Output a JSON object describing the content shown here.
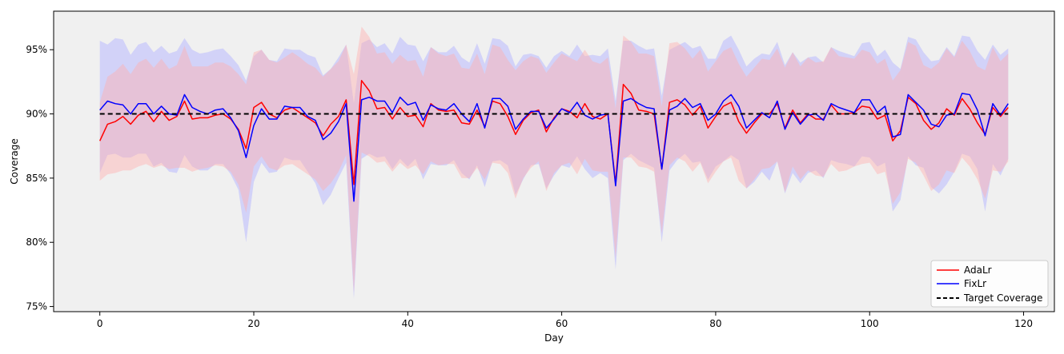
{
  "chart_data": {
    "type": "line",
    "xlabel": "Day",
    "ylabel": "Coverage",
    "xlim": [
      -6,
      124
    ],
    "ylim": [
      74.6,
      98.0
    ],
    "xticks": [
      0,
      20,
      40,
      60,
      80,
      100,
      120
    ],
    "yticks": [
      75,
      80,
      85,
      90,
      95
    ],
    "ytick_labels": [
      "75%",
      "80%",
      "85%",
      "90%",
      "95%"
    ],
    "grid": false,
    "legend_position": "bottom-right",
    "target": {
      "name": "Target Coverage",
      "value": 90,
      "color": "#000000",
      "x_range": [
        0,
        118
      ]
    },
    "series": [
      {
        "name": "AdaLr",
        "color": "#ff0000",
        "band_color": "#ffb0b0",
        "values": [
          87.9,
          89.2,
          89.4,
          89.8,
          89.2,
          89.9,
          90.2,
          89.4,
          90.2,
          89.5,
          89.8,
          91.0,
          89.6,
          89.7,
          89.7,
          89.9,
          90.0,
          89.6,
          88.8,
          87.3,
          90.5,
          90.9,
          90.0,
          89.7,
          90.3,
          90.5,
          90.1,
          89.7,
          89.3,
          88.3,
          89.2,
          89.8,
          91.1,
          84.5,
          92.6,
          91.8,
          90.4,
          90.5,
          89.6,
          90.5,
          89.8,
          89.9,
          89.0,
          90.8,
          90.3,
          90.2,
          90.3,
          89.3,
          89.2,
          90.3,
          89.0,
          91.0,
          90.8,
          89.8,
          88.4,
          89.5,
          90.1,
          90.3,
          88.6,
          89.7,
          90.4,
          90.2,
          89.7,
          90.8,
          89.8,
          89.6,
          90.0,
          84.6,
          92.3,
          91.6,
          90.3,
          90.2,
          90.0,
          85.7,
          90.9,
          91.1,
          90.7,
          89.9,
          90.6,
          88.9,
          89.8,
          90.6,
          90.9,
          89.4,
          88.5,
          89.3,
          90.0,
          90.0,
          90.8,
          88.9,
          90.3,
          89.3,
          90.0,
          89.6,
          89.6,
          90.7,
          90.0,
          90.0,
          90.1,
          90.6,
          90.5,
          89.6,
          89.9,
          87.9,
          88.7,
          91.3,
          90.8,
          89.5,
          88.8,
          89.3,
          90.4,
          89.9,
          91.2,
          90.4,
          89.3,
          88.4,
          90.5,
          89.8,
          90.5
        ],
        "lower": [
          84.8,
          85.3,
          85.4,
          85.6,
          85.6,
          85.9,
          86.1,
          85.8,
          86.0,
          85.7,
          85.8,
          85.8,
          85.5,
          85.7,
          85.8,
          86.0,
          85.9,
          85.5,
          84.5,
          82.3,
          85.9,
          86.7,
          85.8,
          85.6,
          86.0,
          86.1,
          85.7,
          85.3,
          84.9,
          84.0,
          84.6,
          85.5,
          86.8,
          76.1,
          87.0,
          86.7,
          86.2,
          86.3,
          85.5,
          86.2,
          85.7,
          86.0,
          85.3,
          86.3,
          86.0,
          86.1,
          86.1,
          85.0,
          85.0,
          85.8,
          84.9,
          86.2,
          86.1,
          85.4,
          83.4,
          85.0,
          85.8,
          86.3,
          84.0,
          85.4,
          86.0,
          86.2,
          85.3,
          86.5,
          85.6,
          85.5,
          85.5,
          78.8,
          86.6,
          86.6,
          85.9,
          85.8,
          85.5,
          80.7,
          86.0,
          86.6,
          86.3,
          85.5,
          86.2,
          84.6,
          85.5,
          86.3,
          86.6,
          84.8,
          84.2,
          84.9,
          85.7,
          85.8,
          86.3,
          83.9,
          85.9,
          84.9,
          85.6,
          85.2,
          85.1,
          86.1,
          85.5,
          85.6,
          85.9,
          86.1,
          86.2,
          85.3,
          85.5,
          83.0,
          83.9,
          86.5,
          86.2,
          85.2,
          84.0,
          84.5,
          85.6,
          85.4,
          86.6,
          85.9,
          84.9,
          83.4,
          85.6,
          85.5,
          86.3
        ],
        "upper": [
          90.9,
          92.9,
          93.3,
          93.9,
          93.1,
          94.0,
          94.3,
          93.6,
          94.3,
          93.5,
          93.8,
          95.3,
          93.7,
          93.7,
          93.7,
          94.0,
          94.0,
          93.7,
          93.1,
          92.3,
          94.8,
          95.0,
          94.2,
          94.0,
          94.4,
          94.8,
          94.4,
          93.9,
          93.6,
          92.9,
          93.5,
          94.1,
          95.4,
          93.1,
          96.8,
          96.0,
          94.7,
          94.8,
          93.9,
          94.6,
          94.1,
          94.2,
          92.9,
          95.2,
          94.7,
          94.5,
          94.7,
          93.6,
          93.5,
          94.7,
          93.1,
          95.4,
          95.2,
          94.2,
          93.4,
          94.1,
          94.5,
          94.3,
          93.2,
          94.0,
          94.7,
          94.4,
          94.1,
          95.0,
          94.1,
          93.9,
          94.4,
          90.4,
          96.1,
          95.6,
          94.7,
          94.7,
          94.5,
          90.6,
          95.5,
          95.6,
          95.1,
          94.3,
          95.0,
          93.3,
          94.1,
          94.9,
          95.2,
          93.9,
          92.9,
          93.6,
          94.3,
          94.2,
          95.1,
          93.6,
          94.8,
          93.7,
          94.4,
          94.0,
          94.1,
          95.2,
          94.5,
          94.4,
          94.3,
          95.0,
          94.8,
          93.9,
          94.3,
          92.6,
          93.4,
          95.6,
          95.3,
          93.8,
          93.5,
          94.0,
          95.1,
          94.4,
          95.7,
          94.9,
          93.7,
          93.4,
          95.2,
          94.1,
          94.7
        ]
      },
      {
        "name": "FixLr",
        "color": "#0000ff",
        "band_color": "#b3b3ff",
        "values": [
          90.3,
          91.0,
          90.8,
          90.7,
          90.0,
          90.8,
          90.8,
          90.0,
          90.6,
          90.0,
          89.9,
          91.5,
          90.5,
          90.2,
          90.0,
          90.3,
          90.4,
          89.7,
          88.7,
          86.6,
          89.1,
          90.4,
          89.6,
          89.6,
          90.6,
          90.5,
          90.5,
          89.8,
          89.5,
          88.0,
          88.5,
          89.4,
          90.8,
          83.2,
          91.1,
          91.3,
          91.0,
          91.0,
          90.1,
          91.3,
          90.7,
          90.9,
          89.5,
          90.7,
          90.4,
          90.3,
          90.8,
          90.0,
          89.4,
          90.8,
          88.9,
          91.2,
          91.2,
          90.6,
          88.8,
          89.6,
          90.2,
          90.2,
          88.9,
          89.6,
          90.4,
          90.1,
          90.9,
          89.9,
          89.6,
          89.9,
          90.0,
          84.4,
          91.0,
          91.2,
          90.8,
          90.5,
          90.4,
          85.7,
          90.3,
          90.6,
          91.2,
          90.5,
          90.8,
          89.5,
          90.0,
          91.0,
          91.5,
          90.6,
          88.9,
          89.5,
          90.1,
          89.7,
          91.0,
          88.8,
          90.1,
          89.2,
          89.9,
          90.0,
          89.5,
          90.8,
          90.5,
          90.3,
          90.1,
          91.1,
          91.1,
          90.1,
          90.6,
          88.2,
          88.4,
          91.5,
          90.9,
          90.3,
          89.2,
          89.0,
          89.9,
          90.0,
          91.6,
          91.5,
          90.3,
          88.3,
          90.8,
          89.9,
          90.8
        ],
        "lower": [
          85.4,
          86.8,
          86.9,
          86.6,
          86.6,
          86.9,
          86.9,
          85.9,
          86.2,
          85.5,
          85.4,
          86.8,
          85.9,
          85.6,
          85.6,
          86.1,
          86.1,
          85.3,
          84.1,
          80.0,
          84.7,
          86.2,
          85.4,
          85.5,
          86.6,
          86.4,
          86.4,
          85.5,
          84.6,
          82.9,
          83.7,
          85.0,
          86.2,
          75.6,
          86.5,
          86.9,
          86.6,
          86.7,
          85.7,
          86.5,
          85.9,
          86.5,
          84.9,
          86.1,
          86.0,
          86.0,
          86.4,
          85.4,
          84.9,
          86.0,
          84.3,
          86.3,
          86.4,
          86.0,
          83.7,
          84.9,
          86.0,
          86.1,
          84.2,
          85.2,
          86.0,
          85.8,
          86.7,
          85.7,
          85.0,
          85.4,
          85.0,
          77.9,
          86.4,
          86.9,
          86.4,
          86.1,
          85.8,
          80.0,
          85.6,
          86.4,
          86.9,
          86.2,
          86.3,
          84.9,
          85.9,
          86.3,
          86.8,
          86.4,
          84.2,
          84.7,
          85.5,
          84.8,
          86.3,
          83.8,
          85.4,
          84.6,
          85.4,
          85.6,
          85.0,
          86.4,
          86.2,
          86.1,
          85.9,
          86.7,
          86.6,
          85.9,
          86.2,
          82.4,
          83.3,
          86.7,
          86.0,
          85.8,
          84.3,
          83.8,
          84.5,
          85.5,
          86.9,
          86.7,
          85.7,
          82.4,
          86.1,
          85.2,
          86.5
        ],
        "upper": [
          95.7,
          95.4,
          95.9,
          95.8,
          94.6,
          95.4,
          95.6,
          94.8,
          95.3,
          94.7,
          94.9,
          95.9,
          95.0,
          94.7,
          94.8,
          95.0,
          95.1,
          94.5,
          93.8,
          92.6,
          94.5,
          95.0,
          94.2,
          94.1,
          95.1,
          95.0,
          95.0,
          94.6,
          94.4,
          93.0,
          93.5,
          94.4,
          95.4,
          90.8,
          95.5,
          95.8,
          95.2,
          95.5,
          94.7,
          96.0,
          95.4,
          95.3,
          94.1,
          95.2,
          94.8,
          94.8,
          95.3,
          94.4,
          94.0,
          95.5,
          93.9,
          95.9,
          95.8,
          95.3,
          93.7,
          94.6,
          94.7,
          94.5,
          93.6,
          94.5,
          94.9,
          94.5,
          95.4,
          94.5,
          94.6,
          94.5,
          95.1,
          91.0,
          95.7,
          95.7,
          95.3,
          95.0,
          95.1,
          91.4,
          95.0,
          95.3,
          95.6,
          95.1,
          95.3,
          94.3,
          94.3,
          95.7,
          96.1,
          95.0,
          93.7,
          94.3,
          94.7,
          94.6,
          95.6,
          93.8,
          94.8,
          94.0,
          94.4,
          94.5,
          94.0,
          95.2,
          94.9,
          94.7,
          94.5,
          95.5,
          95.6,
          94.5,
          95.0,
          94.0,
          93.5,
          96.0,
          95.8,
          94.8,
          94.1,
          94.2,
          95.2,
          94.5,
          96.1,
          96.0,
          94.9,
          94.2,
          95.4,
          94.6,
          95.1
        ]
      }
    ]
  }
}
